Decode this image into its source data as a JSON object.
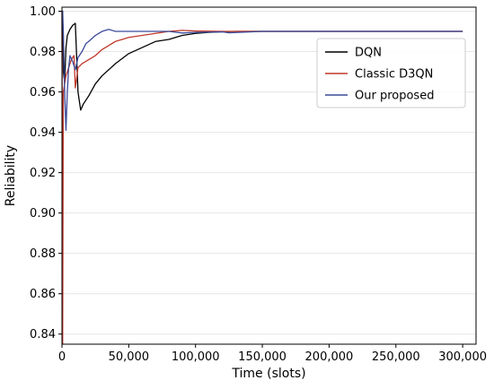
{
  "chart_data": {
    "type": "line",
    "title": "",
    "xlabel": "Time (slots)",
    "ylabel": "Reliability",
    "xlim": [
      0,
      310000
    ],
    "ylim": [
      0.835,
      1.002
    ],
    "xticks": [
      0,
      50000,
      100000,
      150000,
      200000,
      250000,
      300000
    ],
    "xtick_labels": [
      "0",
      "50,000",
      "100,000",
      "150,000",
      "200,000",
      "250,000",
      "300,000"
    ],
    "yticks": [
      0.84,
      0.86,
      0.88,
      0.9,
      0.92,
      0.94,
      0.96,
      0.98,
      1.0
    ],
    "ytick_labels": [
      "0.84",
      "0.86",
      "0.88",
      "0.90",
      "0.92",
      "0.94",
      "0.96",
      "0.98",
      "1.00"
    ],
    "grid": "horizontal",
    "legend_position": "top-right",
    "series": [
      {
        "name": "DQN",
        "color": "#000000",
        "x": [
          0,
          500,
          1000,
          2000,
          3000,
          4000,
          6000,
          8000,
          10000,
          12000,
          14000,
          16000,
          20000,
          25000,
          30000,
          40000,
          50000,
          60000,
          70000,
          80000,
          90000,
          100000,
          110000,
          120000,
          130000,
          150000,
          200000,
          250000,
          300000
        ],
        "y": [
          1.0,
          1.0,
          0.97,
          0.965,
          0.982,
          0.988,
          0.991,
          0.993,
          0.994,
          0.96,
          0.951,
          0.954,
          0.958,
          0.964,
          0.968,
          0.974,
          0.979,
          0.982,
          0.985,
          0.986,
          0.988,
          0.989,
          0.9895,
          0.9898,
          0.99,
          0.99,
          0.99,
          0.99,
          0.99
        ]
      },
      {
        "name": "Classic D3QN",
        "color": "#c0392b",
        "x": [
          0,
          500,
          1000,
          1500,
          3000,
          5000,
          7000,
          9000,
          10000,
          12000,
          15000,
          20000,
          25000,
          30000,
          40000,
          50000,
          60000,
          70000,
          80000,
          90000,
          100000,
          120000,
          150000,
          200000,
          250000,
          300000
        ],
        "y": [
          1.0,
          0.835,
          0.96,
          0.962,
          0.968,
          0.972,
          0.976,
          0.978,
          0.962,
          0.972,
          0.974,
          0.976,
          0.978,
          0.981,
          0.985,
          0.987,
          0.988,
          0.989,
          0.99,
          0.9905,
          0.9902,
          0.99,
          0.99,
          0.99,
          0.99,
          0.99
        ]
      },
      {
        "name": "Our proposed",
        "color": "#3a4a99",
        "x": [
          0,
          500,
          1000,
          2000,
          3000,
          4000,
          5000,
          6000,
          8000,
          10000,
          12000,
          15000,
          18000,
          20000,
          25000,
          30000,
          35000,
          40000,
          50000,
          60000,
          70000,
          80000,
          90000,
          100000,
          120000,
          125000,
          150000,
          200000,
          250000,
          300000
        ],
        "y": [
          1.0,
          1.0,
          0.99,
          0.96,
          0.941,
          0.96,
          0.972,
          0.978,
          0.975,
          0.971,
          0.977,
          0.98,
          0.984,
          0.985,
          0.988,
          0.99,
          0.991,
          0.99,
          0.99,
          0.99,
          0.99,
          0.99,
          0.9892,
          0.9895,
          0.9898,
          0.9893,
          0.99,
          0.99,
          0.99,
          0.99
        ]
      }
    ]
  }
}
